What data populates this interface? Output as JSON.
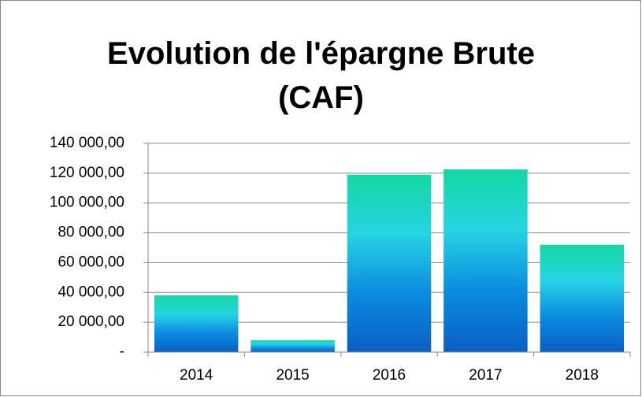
{
  "chart_data": {
    "type": "bar",
    "title": "Evolution de l'épargne Brute (CAF)",
    "categories": [
      "2014",
      "2015",
      "2016",
      "2017",
      "2018"
    ],
    "values": [
      38000,
      8000,
      119000,
      122500,
      72000
    ],
    "colors": [
      "#12d9a2",
      "#27d3e3",
      "#0a8ce0",
      "#0a5fc4"
    ],
    "ylim": [
      0,
      140000
    ],
    "yticks": [
      {
        "value": 0,
        "label": "-"
      },
      {
        "value": 20000,
        "label": "20 000,00"
      },
      {
        "value": 40000,
        "label": "40 000,00"
      },
      {
        "value": 60000,
        "label": "60 000,00"
      },
      {
        "value": 80000,
        "label": "80 000,00"
      },
      {
        "value": 100000,
        "label": "100 000,00"
      },
      {
        "value": 120000,
        "label": "120 000,00"
      },
      {
        "value": 140000,
        "label": "140 000,00"
      }
    ],
    "grid": true
  }
}
